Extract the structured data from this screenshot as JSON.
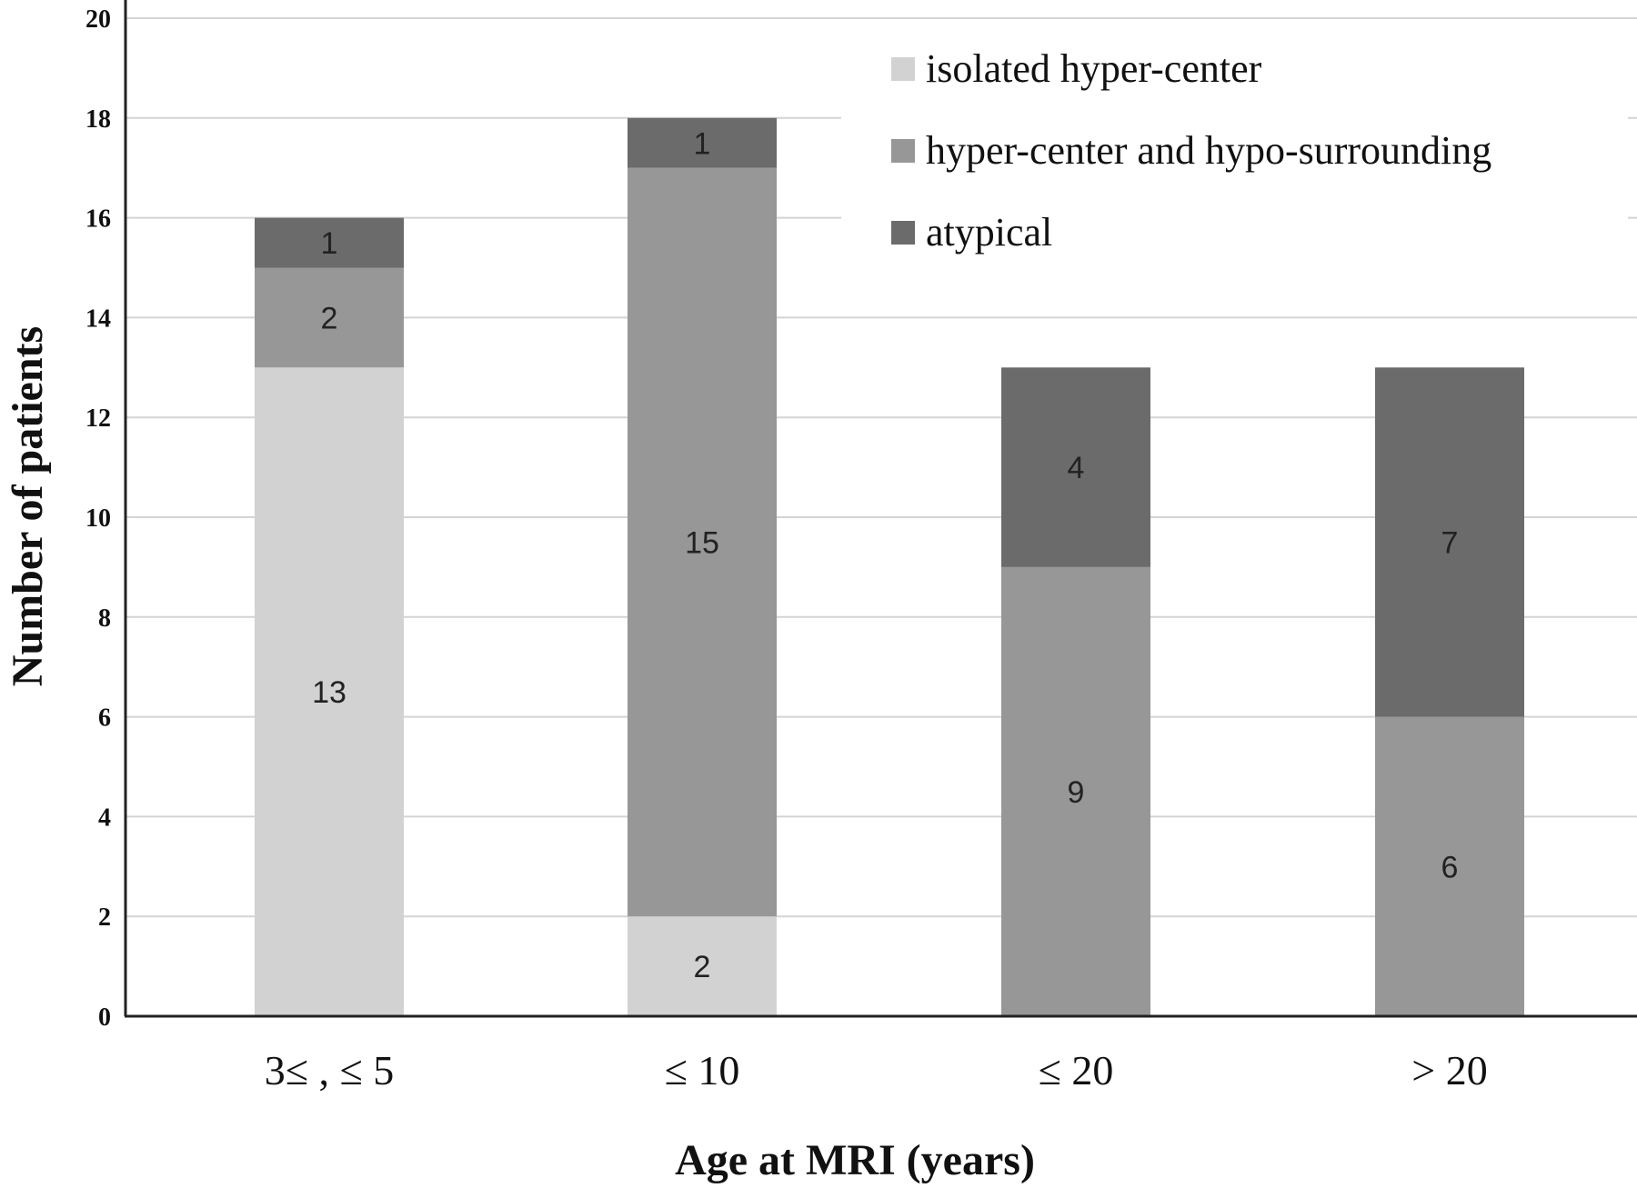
{
  "chart_data": {
    "type": "bar",
    "stacked": true,
    "categories": [
      "3≤ , ≤ 5",
      "≤ 10",
      "≤ 20",
      "> 20"
    ],
    "series": [
      {
        "name": "isolated hyper-center",
        "values": [
          13,
          2,
          0,
          0
        ],
        "color": "#d2d2d2"
      },
      {
        "name": "hyper-center and hypo-surrounding",
        "values": [
          2,
          15,
          9,
          6
        ],
        "color": "#979797"
      },
      {
        "name": "atypical",
        "values": [
          1,
          1,
          4,
          7
        ],
        "color": "#6b6b6b"
      }
    ],
    "title": "",
    "xlabel": "Age at MRI (years)",
    "ylabel": "Number of patients",
    "ylim": [
      0,
      20
    ],
    "yticks": [
      "0",
      "2",
      "4",
      "6",
      "8",
      "10",
      "12",
      "14",
      "16",
      "18",
      "20"
    ],
    "grid": true,
    "legend_position": "top-right"
  }
}
